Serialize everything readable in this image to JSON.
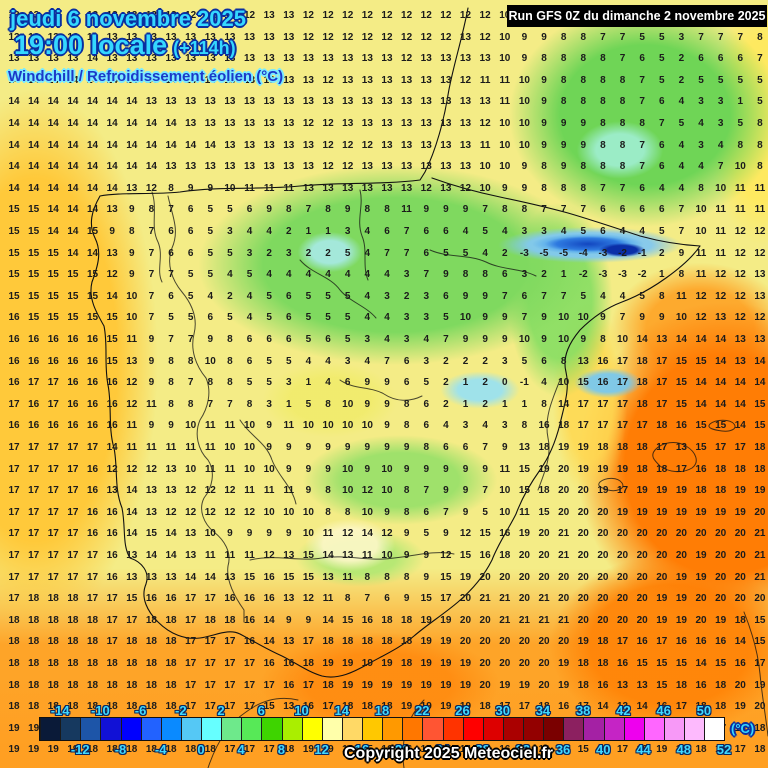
{
  "header": {
    "date_line": "jeudi 6 novembre 2025",
    "time_line": "19:00 locale",
    "forecast_offset": "(+114h)",
    "product_label": "Windchill / Refroidissement éolien (°C)"
  },
  "run_info": {
    "text": "Run GFS 0Z du dimanche 2 novembre 2025"
  },
  "copyright": "Copyright 2025 Meteociel.fr",
  "colorbar": {
    "unit": "(°C)",
    "top_labels": [
      -14,
      -10,
      -6,
      -2,
      2,
      6,
      10,
      14,
      18,
      22,
      26,
      30,
      34,
      38,
      42,
      46,
      50
    ],
    "bottom_labels": [
      -12,
      -8,
      -4,
      0,
      4,
      8,
      12,
      16,
      20,
      24,
      28,
      32,
      36,
      40,
      44,
      48,
      52
    ],
    "colors": [
      "#0a1a38",
      "#16395f",
      "#1d55a8",
      "#1111d6",
      "#0000ff",
      "#2262ff",
      "#0a8aff",
      "#55c8f5",
      "#66ffff",
      "#6ee98b",
      "#57e957",
      "#3ed400",
      "#aaee00",
      "#ffff00",
      "#ffffaa",
      "#ffd966",
      "#ffc800",
      "#ff9900",
      "#ff7700",
      "#ff5533",
      "#ff3300",
      "#ff0000",
      "#dd0000",
      "#aa0000",
      "#930000",
      "#7a0000",
      "#8c2060",
      "#a421a4",
      "#c524c5",
      "#ee00ee",
      "#ff66ff",
      "#f799f7",
      "#fdbafd",
      "#ffffff"
    ]
  },
  "grid": {
    "rows": [
      [
        13,
        13,
        13,
        13,
        13,
        13,
        13,
        13,
        12,
        12,
        12,
        12,
        12,
        13,
        13,
        12,
        12,
        12,
        12,
        12,
        12,
        12,
        12,
        12,
        12,
        10,
        9,
        9,
        8,
        8,
        7,
        7,
        6,
        5,
        4,
        7,
        7,
        7,
        8
      ],
      [
        13,
        13,
        13,
        13,
        13,
        13,
        13,
        13,
        13,
        13,
        13,
        13,
        13,
        13,
        13,
        12,
        12,
        12,
        12,
        12,
        12,
        12,
        12,
        13,
        12,
        10,
        9,
        9,
        8,
        8,
        7,
        7,
        5,
        5,
        3,
        7,
        7,
        7,
        8
      ],
      [
        13,
        13,
        13,
        13,
        14,
        13,
        13,
        13,
        13,
        13,
        13,
        13,
        13,
        13,
        13,
        13,
        13,
        13,
        13,
        13,
        12,
        13,
        13,
        13,
        13,
        10,
        9,
        8,
        8,
        8,
        8,
        7,
        6,
        5,
        2,
        6,
        6,
        6,
        7
      ],
      [
        14,
        14,
        14,
        14,
        14,
        14,
        14,
        14,
        14,
        14,
        14,
        13,
        13,
        13,
        13,
        13,
        12,
        13,
        13,
        13,
        13,
        13,
        13,
        12,
        11,
        11,
        10,
        9,
        8,
        8,
        8,
        8,
        7,
        5,
        2,
        5,
        5,
        5,
        5
      ],
      [
        14,
        14,
        14,
        14,
        14,
        14,
        14,
        13,
        13,
        13,
        13,
        13,
        13,
        13,
        13,
        13,
        13,
        13,
        13,
        13,
        13,
        13,
        13,
        13,
        13,
        11,
        10,
        9,
        8,
        8,
        8,
        8,
        7,
        6,
        4,
        3,
        3,
        1,
        5
      ],
      [
        14,
        14,
        14,
        14,
        14,
        14,
        14,
        14,
        14,
        13,
        13,
        13,
        13,
        13,
        13,
        12,
        12,
        13,
        13,
        13,
        13,
        13,
        13,
        13,
        12,
        10,
        10,
        9,
        9,
        9,
        8,
        8,
        8,
        7,
        5,
        4,
        3,
        5,
        8
      ],
      [
        14,
        14,
        14,
        14,
        14,
        14,
        14,
        14,
        14,
        14,
        14,
        13,
        13,
        13,
        13,
        13,
        12,
        12,
        12,
        13,
        13,
        13,
        13,
        13,
        11,
        10,
        10,
        9,
        9,
        9,
        8,
        8,
        7,
        6,
        4,
        3,
        4,
        8,
        8
      ],
      [
        14,
        14,
        14,
        14,
        14,
        14,
        14,
        14,
        13,
        13,
        13,
        13,
        13,
        13,
        13,
        13,
        12,
        12,
        13,
        13,
        13,
        13,
        13,
        13,
        10,
        10,
        9,
        8,
        9,
        8,
        8,
        8,
        7,
        6,
        4,
        4,
        7,
        10,
        8
      ],
      [
        14,
        14,
        14,
        14,
        14,
        14,
        13,
        12,
        8,
        9,
        9,
        10,
        11,
        11,
        11,
        13,
        13,
        13,
        13,
        13,
        13,
        12,
        13,
        12,
        10,
        9,
        9,
        8,
        8,
        8,
        7,
        7,
        6,
        4,
        4,
        8,
        10,
        11,
        11
      ],
      [
        15,
        15,
        14,
        14,
        14,
        13,
        9,
        8,
        7,
        6,
        5,
        5,
        6,
        9,
        8,
        7,
        8,
        9,
        8,
        8,
        11,
        9,
        9,
        9,
        7,
        8,
        8,
        7,
        7,
        7,
        6,
        6,
        6,
        6,
        7,
        10,
        11,
        11,
        11
      ],
      [
        15,
        15,
        14,
        14,
        15,
        9,
        8,
        7,
        6,
        6,
        5,
        3,
        4,
        4,
        2,
        1,
        1,
        3,
        4,
        6,
        7,
        6,
        6,
        4,
        5,
        4,
        3,
        3,
        4,
        5,
        6,
        4,
        4,
        5,
        7,
        10,
        11,
        12,
        12
      ],
      [
        15,
        15,
        15,
        14,
        14,
        13,
        9,
        7,
        6,
        6,
        5,
        5,
        3,
        2,
        3,
        2,
        2,
        5,
        4,
        7,
        7,
        6,
        5,
        5,
        4,
        2,
        -3,
        -5,
        -5,
        -4,
        -3,
        -2,
        -1,
        2,
        9,
        11,
        11,
        12,
        12
      ],
      [
        15,
        15,
        15,
        15,
        15,
        12,
        9,
        7,
        7,
        5,
        5,
        4,
        5,
        4,
        4,
        4,
        4,
        4,
        4,
        4,
        3,
        7,
        9,
        8,
        8,
        6,
        3,
        2,
        1,
        -2,
        -3,
        -3,
        -2,
        1,
        8,
        11,
        12,
        12,
        13
      ],
      [
        15,
        15,
        15,
        15,
        15,
        14,
        10,
        7,
        6,
        5,
        4,
        2,
        4,
        5,
        6,
        5,
        5,
        5,
        4,
        3,
        2,
        3,
        6,
        9,
        9,
        7,
        6,
        7,
        7,
        5,
        4,
        4,
        5,
        8,
        11,
        12,
        12,
        12,
        13
      ],
      [
        16,
        15,
        15,
        15,
        15,
        15,
        10,
        7,
        5,
        5,
        6,
        5,
        4,
        5,
        6,
        5,
        5,
        5,
        4,
        4,
        3,
        3,
        5,
        10,
        9,
        9,
        7,
        9,
        10,
        10,
        9,
        7,
        9,
        9,
        10,
        12,
        13,
        12,
        12
      ],
      [
        16,
        16,
        16,
        16,
        16,
        15,
        11,
        9,
        7,
        7,
        9,
        8,
        6,
        6,
        6,
        5,
        6,
        5,
        3,
        4,
        3,
        4,
        7,
        9,
        9,
        9,
        10,
        9,
        10,
        9,
        8,
        10,
        14,
        13,
        14,
        14,
        14,
        13,
        13
      ],
      [
        16,
        16,
        16,
        16,
        16,
        15,
        13,
        9,
        8,
        8,
        10,
        8,
        6,
        5,
        5,
        4,
        4,
        3,
        4,
        7,
        6,
        3,
        2,
        2,
        2,
        3,
        5,
        6,
        8,
        13,
        16,
        17,
        18,
        17,
        15,
        15,
        14,
        13,
        14
      ],
      [
        16,
        17,
        17,
        16,
        16,
        16,
        12,
        9,
        8,
        7,
        8,
        8,
        5,
        5,
        3,
        1,
        4,
        6,
        9,
        9,
        6,
        5,
        2,
        1,
        2,
        0,
        -1,
        4,
        10,
        15,
        16,
        17,
        18,
        17,
        15,
        14,
        14,
        14,
        14
      ],
      [
        17,
        16,
        17,
        16,
        16,
        16,
        12,
        11,
        8,
        8,
        7,
        7,
        8,
        3,
        1,
        5,
        8,
        10,
        9,
        9,
        8,
        6,
        2,
        1,
        2,
        1,
        1,
        8,
        14,
        17,
        17,
        17,
        18,
        17,
        15,
        14,
        14,
        14,
        15
      ],
      [
        16,
        16,
        16,
        16,
        16,
        16,
        11,
        9,
        9,
        10,
        11,
        11,
        10,
        9,
        11,
        10,
        10,
        10,
        10,
        9,
        8,
        6,
        4,
        3,
        4,
        3,
        8,
        16,
        18,
        17,
        17,
        17,
        17,
        18,
        16,
        15,
        15,
        14,
        15
      ],
      [
        17,
        17,
        17,
        17,
        17,
        14,
        11,
        11,
        11,
        11,
        11,
        10,
        10,
        9,
        9,
        9,
        9,
        9,
        9,
        9,
        9,
        8,
        6,
        6,
        7,
        9,
        13,
        18,
        19,
        19,
        18,
        18,
        18,
        17,
        13,
        15,
        17,
        17,
        18
      ],
      [
        17,
        17,
        17,
        17,
        16,
        12,
        12,
        12,
        13,
        10,
        11,
        11,
        10,
        10,
        9,
        9,
        9,
        10,
        9,
        10,
        9,
        9,
        9,
        9,
        9,
        11,
        15,
        19,
        20,
        19,
        19,
        19,
        18,
        18,
        17,
        16,
        18,
        18,
        18
      ],
      [
        17,
        17,
        17,
        17,
        16,
        13,
        14,
        13,
        13,
        12,
        12,
        12,
        11,
        11,
        11,
        9,
        8,
        10,
        12,
        10,
        8,
        7,
        9,
        9,
        7,
        10,
        15,
        18,
        20,
        20,
        19,
        17,
        19,
        19,
        19,
        18,
        18,
        19,
        19
      ],
      [
        17,
        17,
        17,
        17,
        16,
        16,
        14,
        13,
        12,
        12,
        12,
        12,
        12,
        10,
        10,
        10,
        8,
        8,
        10,
        9,
        8,
        6,
        7,
        9,
        5,
        10,
        11,
        15,
        20,
        20,
        20,
        19,
        19,
        19,
        19,
        19,
        19,
        19,
        20
      ],
      [
        17,
        17,
        17,
        17,
        16,
        16,
        14,
        15,
        14,
        13,
        10,
        9,
        9,
        9,
        9,
        10,
        11,
        12,
        14,
        12,
        9,
        5,
        9,
        12,
        15,
        16,
        19,
        20,
        21,
        20,
        20,
        20,
        20,
        20,
        20,
        20,
        20,
        20,
        21
      ],
      [
        17,
        17,
        17,
        17,
        17,
        16,
        13,
        14,
        14,
        13,
        11,
        11,
        11,
        12,
        13,
        15,
        14,
        13,
        11,
        10,
        9,
        9,
        12,
        15,
        16,
        18,
        20,
        20,
        21,
        20,
        20,
        20,
        20,
        20,
        20,
        19,
        20,
        20,
        21
      ],
      [
        17,
        17,
        17,
        17,
        17,
        16,
        13,
        13,
        13,
        14,
        14,
        13,
        15,
        16,
        15,
        15,
        13,
        11,
        8,
        8,
        8,
        9,
        15,
        19,
        20,
        20,
        20,
        20,
        20,
        20,
        20,
        20,
        20,
        20,
        19,
        19,
        20,
        20,
        21
      ],
      [
        17,
        18,
        18,
        18,
        17,
        17,
        15,
        16,
        16,
        17,
        17,
        16,
        16,
        16,
        13,
        12,
        11,
        8,
        7,
        6,
        9,
        15,
        17,
        20,
        21,
        21,
        20,
        21,
        20,
        20,
        20,
        20,
        20,
        19,
        19,
        20,
        20,
        20,
        20
      ],
      [
        18,
        18,
        18,
        18,
        18,
        17,
        17,
        18,
        18,
        17,
        18,
        18,
        16,
        14,
        9,
        9,
        14,
        15,
        16,
        18,
        18,
        19,
        19,
        20,
        20,
        21,
        21,
        21,
        21,
        20,
        20,
        20,
        20,
        19,
        19,
        20,
        19,
        18,
        15
      ],
      [
        18,
        18,
        18,
        18,
        18,
        17,
        18,
        18,
        18,
        17,
        17,
        17,
        16,
        14,
        13,
        17,
        18,
        18,
        18,
        18,
        18,
        19,
        19,
        20,
        20,
        20,
        20,
        20,
        20,
        19,
        18,
        17,
        16,
        17,
        16,
        16,
        16,
        14,
        15
      ],
      [
        18,
        18,
        18,
        18,
        18,
        18,
        18,
        18,
        18,
        17,
        17,
        17,
        17,
        16,
        16,
        18,
        19,
        19,
        19,
        19,
        18,
        19,
        19,
        19,
        20,
        20,
        20,
        20,
        19,
        18,
        18,
        16,
        15,
        15,
        15,
        14,
        15,
        16,
        17
      ],
      [
        18,
        18,
        18,
        18,
        18,
        18,
        18,
        18,
        18,
        17,
        17,
        17,
        17,
        17,
        16,
        17,
        18,
        19,
        19,
        19,
        19,
        19,
        19,
        19,
        20,
        19,
        19,
        20,
        19,
        18,
        16,
        13,
        13,
        15,
        18,
        16,
        18,
        20,
        19
      ],
      [
        18,
        18,
        18,
        18,
        18,
        18,
        18,
        18,
        18,
        17,
        17,
        17,
        17,
        15,
        13,
        16,
        17,
        18,
        18,
        18,
        19,
        19,
        19,
        19,
        18,
        17,
        17,
        18,
        16,
        17,
        14,
        13,
        14,
        16,
        17,
        18,
        18,
        19,
        20
      ],
      [
        19,
        19,
        19,
        19,
        19,
        18,
        18,
        18,
        18,
        18,
        18,
        18,
        17,
        16,
        17,
        16,
        13,
        13,
        15,
        16,
        16,
        16,
        15,
        14,
        14,
        16,
        16,
        16,
        16,
        16,
        15,
        15,
        17,
        18,
        19,
        18,
        17,
        16,
        18
      ],
      [
        19,
        19,
        19,
        19,
        18,
        18,
        18,
        18,
        18,
        18,
        18,
        17,
        17,
        17,
        18,
        19,
        19,
        18,
        15,
        16,
        16,
        15,
        14,
        14,
        16,
        16,
        16,
        16,
        16,
        15,
        15,
        17,
        18,
        19,
        19,
        18,
        15,
        17,
        18
      ]
    ]
  }
}
